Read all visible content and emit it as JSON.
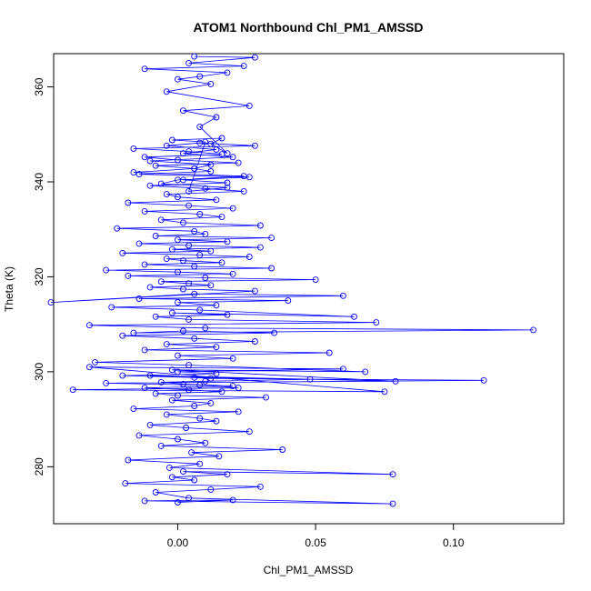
{
  "chart_data": {
    "type": "line",
    "title": "ATOM1 Northbound Chl_PM1_AMSSD",
    "xlabel": "Chl_PM1_AMSSD",
    "ylabel": "Theta (K)",
    "xlim": [
      -0.045,
      0.14
    ],
    "ylim": [
      268,
      367
    ],
    "x_ticks": [
      0.0,
      0.05,
      0.1
    ],
    "x_tick_labels": [
      "0.00",
      "0.05",
      "0.10"
    ],
    "y_ticks": [
      280,
      300,
      320,
      340,
      360
    ],
    "y_tick_labels": [
      "280",
      "300",
      "320",
      "340",
      "360"
    ],
    "grid": false,
    "legend": "none",
    "series_color": "#0000ff",
    "marker": "open-circle",
    "series": [
      {
        "x": [
          0.0,
          0.02,
          -0.012,
          0.078,
          0.004,
          -0.008,
          0.012,
          0.03,
          -0.019,
          0.006,
          -0.002,
          0.018,
          0.002,
          0.078,
          -0.003,
          0.008,
          -0.018,
          0.015,
          0.005,
          0.038,
          -0.006,
          0.01,
          0.0,
          -0.014,
          0.026,
          0.003,
          -0.01,
          0.014,
          0.008,
          -0.004,
          0.022,
          -0.016,
          0.006,
          0.012,
          -0.002,
          0.032,
          0.0,
          -0.008,
          0.016,
          0.004,
          -0.012,
          0.02,
          0.002,
          -0.006,
          0.01,
          0.048,
          0.006,
          -0.02,
          0.014,
          0.0,
          0.06,
          -0.032,
          0.075,
          -0.038,
          0.022,
          0.008,
          -0.026,
          0.111,
          0.012,
          -0.01,
          0.079,
          -0.002,
          0.068,
          0.004,
          -0.03,
          0.02,
          0.0,
          0.055,
          -0.012,
          0.014,
          -0.004,
          0.028,
          0.006,
          -0.02,
          0.035,
          0.002,
          -0.016,
          0.129,
          0.01,
          -0.032,
          0.072,
          0.004,
          -0.008,
          0.018,
          -0.002,
          0.064,
          0.008,
          -0.024,
          0.014,
          0.0,
          0.04,
          -0.014,
          0.06,
          0.006,
          -0.046,
          0.028,
          0.002,
          -0.01,
          0.012,
          0.004,
          -0.006,
          0.05,
          0.01,
          -0.018,
          0.02,
          0.0,
          -0.026,
          0.034,
          0.006,
          -0.012,
          0.016,
          0.002,
          -0.004,
          0.026,
          0.008,
          -0.02,
          0.012,
          -0.002,
          0.03,
          0.004,
          -0.014,
          0.018,
          0.0,
          0.034,
          -0.008,
          0.01,
          0.006,
          -0.022,
          0.03,
          0.002,
          -0.006,
          0.016,
          0.008,
          -0.012,
          0.02,
          0.004,
          -0.018,
          0.014,
          0.0,
          -0.004,
          0.024,
          0.01,
          -0.01,
          0.018,
          0.002,
          0.026,
          -0.014,
          0.012,
          0.006,
          -0.008,
          0.022,
          0.0,
          -0.012,
          0.016,
          0.004,
          -0.016,
          0.028,
          0.008,
          -0.004,
          0.014,
          0.002,
          0.02,
          -0.01,
          0.012,
          0.006,
          -0.016,
          0.024,
          0.0,
          -0.006,
          0.018,
          0.004,
          0.01,
          -0.002,
          0.016,
          0.012,
          0.018,
          0.008,
          0.014,
          0.002,
          0.026,
          -0.004,
          0.012,
          0.0,
          0.008,
          0.018,
          -0.012,
          0.024,
          0.004,
          0.028,
          0.006
        ],
        "y": [
          272.5,
          273.0,
          272.8,
          272.2,
          273.4,
          274.6,
          275.2,
          275.8,
          276.5,
          277.2,
          277.8,
          278.4,
          279.0,
          278.4,
          279.8,
          280.6,
          281.4,
          282.2,
          283.0,
          283.6,
          284.4,
          285.0,
          285.8,
          286.6,
          287.4,
          288.2,
          288.8,
          289.6,
          290.2,
          291.0,
          291.6,
          292.2,
          292.8,
          293.4,
          294.0,
          294.6,
          295.0,
          295.4,
          295.8,
          296.2,
          296.6,
          297.0,
          297.4,
          297.8,
          298.0,
          298.4,
          298.8,
          299.2,
          299.6,
          300.0,
          300.6,
          301.0,
          295.8,
          296.2,
          296.6,
          297.2,
          297.6,
          298.2,
          298.6,
          299.2,
          298.0,
          300.4,
          300.0,
          301.4,
          302.0,
          302.8,
          303.4,
          304.0,
          304.6,
          305.2,
          305.8,
          306.4,
          307.0,
          307.6,
          308.2,
          308.6,
          308.2,
          308.8,
          309.2,
          309.8,
          310.4,
          311.0,
          311.6,
          312.0,
          312.4,
          311.6,
          313.0,
          313.6,
          314.0,
          314.6,
          315.0,
          315.4,
          316.0,
          316.4,
          314.6,
          317.0,
          317.4,
          317.8,
          318.2,
          318.6,
          319.0,
          319.4,
          319.8,
          320.2,
          320.6,
          321.0,
          321.4,
          321.8,
          322.2,
          322.6,
          323.0,
          323.4,
          323.8,
          324.2,
          324.6,
          325.0,
          325.4,
          325.8,
          326.2,
          326.6,
          327.0,
          327.4,
          327.8,
          328.2,
          328.6,
          329.0,
          329.6,
          330.2,
          330.8,
          331.4,
          332.0,
          332.6,
          333.2,
          333.8,
          334.4,
          335.0,
          335.6,
          336.2,
          336.8,
          337.4,
          338.0,
          338.6,
          339.2,
          339.8,
          340.4,
          341.0,
          341.6,
          342.2,
          342.8,
          343.4,
          344.0,
          344.6,
          345.2,
          345.8,
          346.4,
          347.0,
          347.6,
          348.2,
          347.6,
          346.8,
          346.0,
          345.2,
          344.4,
          343.6,
          342.8,
          342.0,
          341.2,
          340.4,
          339.6,
          338.8,
          338.0,
          348.4,
          348.8,
          349.2,
          348.0,
          346.0,
          351.6,
          353.6,
          355.0,
          356.0,
          359.0,
          360.6,
          361.6,
          362.2,
          363.0,
          363.8,
          364.4,
          365.0,
          366.2,
          366.4
        ]
      }
    ]
  }
}
